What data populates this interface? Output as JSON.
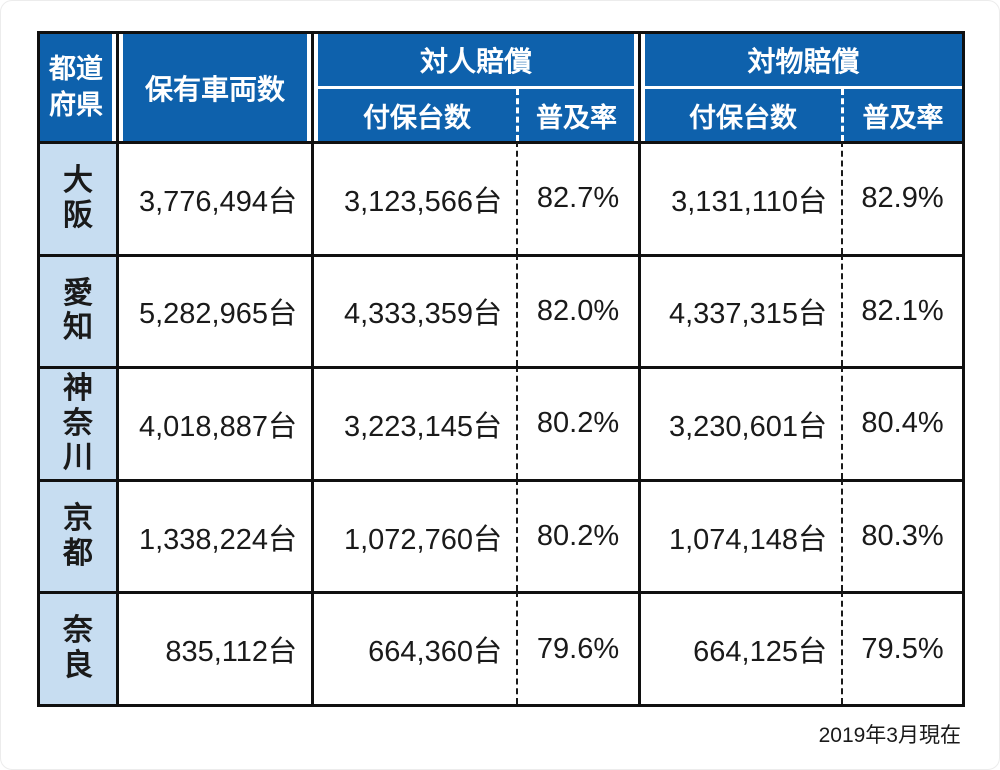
{
  "table": {
    "header": {
      "prefecture": "都道\n府県",
      "vehicles_owned": "保有車両数",
      "bodily_injury_group": "対人賠償",
      "property_damage_group": "対物賠償",
      "insured_count": "付保台数",
      "coverage_rate": "普及率"
    },
    "rows": [
      {
        "prefecture": "大\n阪",
        "vehicles": "3,776,494台",
        "bi_insured": "3,123,566台",
        "bi_rate": "82.7%",
        "pd_insured": "3,131,110台",
        "pd_rate": "82.9%"
      },
      {
        "prefecture": "愛\n知",
        "vehicles": "5,282,965台",
        "bi_insured": "4,333,359台",
        "bi_rate": "82.0%",
        "pd_insured": "4,337,315台",
        "pd_rate": "82.1%"
      },
      {
        "prefecture": "神\n奈\n川",
        "vehicles": "4,018,887台",
        "bi_insured": "3,223,145台",
        "bi_rate": "80.2%",
        "pd_insured": "3,230,601台",
        "pd_rate": "80.4%"
      },
      {
        "prefecture": "京\n都",
        "vehicles": "1,338,224台",
        "bi_insured": "1,072,760台",
        "bi_rate": "80.2%",
        "pd_insured": "1,074,148台",
        "pd_rate": "80.3%"
      },
      {
        "prefecture": "奈\n良",
        "vehicles": "835,112台",
        "bi_insured": "664,360台",
        "bi_rate": "79.6%",
        "pd_insured": "664,125台",
        "pd_rate": "79.5%"
      }
    ],
    "footnote": "2019年3月現在"
  },
  "colors": {
    "header_blue": "#0e61ac",
    "prefecture_blue": "#c7ddf1",
    "border_black": "#101010",
    "text": "#1a1a1a"
  },
  "chart_data": {
    "type": "table",
    "title": "",
    "columns": [
      "都道府県",
      "保有車両数",
      "対人賠償 付保台数",
      "対人賠償 普及率",
      "対物賠償 付保台数",
      "対物賠償 普及率"
    ],
    "rows": [
      [
        "大阪",
        3776494,
        3123566,
        82.7,
        3131110,
        82.9
      ],
      [
        "愛知",
        5282965,
        4333359,
        82.0,
        4337315,
        82.1
      ],
      [
        "神奈川",
        4018887,
        3223145,
        80.2,
        3230601,
        80.4
      ],
      [
        "京都",
        1338224,
        1072760,
        80.2,
        1074148,
        80.3
      ],
      [
        "奈良",
        835112,
        664360,
        79.6,
        664125,
        79.5
      ]
    ],
    "units": {
      "counts": "台",
      "rates": "%"
    },
    "note": "2019年3月現在"
  }
}
